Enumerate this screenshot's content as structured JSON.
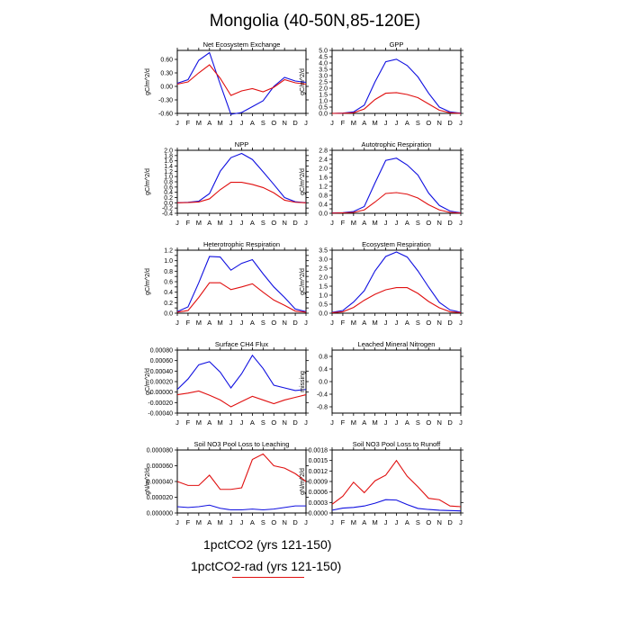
{
  "title": "Mongolia (40-50N,85-120E)",
  "months": [
    "J",
    "F",
    "M",
    "A",
    "M",
    "J",
    "J",
    "A",
    "S",
    "O",
    "N",
    "D",
    "J"
  ],
  "colors": {
    "blue": "#1010e0",
    "red": "#e01010"
  },
  "legend": {
    "entries": [
      {
        "label": "1pctCO2 (yrs 121-150)",
        "color": "#1010e0"
      },
      {
        "label": "1pctCO2-rad (yrs 121-150)",
        "color": "#e01010"
      }
    ]
  },
  "chart_data": [
    {
      "type": "line",
      "title": "Net Ecosystem Exchange",
      "ylabel": "gC/m^2/d",
      "ylim": [
        -0.6,
        0.8
      ],
      "yticks": [
        -0.6,
        -0.3,
        0.0,
        0.3,
        0.6
      ],
      "ytick_labels": [
        "-0.60",
        "-0.30",
        "0.00",
        "0.30",
        "0.60"
      ],
      "series": [
        {
          "color": "blue",
          "values": [
            0.07,
            0.15,
            0.58,
            0.75,
            0.05,
            -0.62,
            -0.58,
            -0.45,
            -0.32,
            0.0,
            0.2,
            0.12,
            0.09
          ]
        },
        {
          "color": "red",
          "values": [
            0.05,
            0.1,
            0.3,
            0.48,
            0.18,
            -0.2,
            -0.1,
            -0.05,
            -0.12,
            -0.02,
            0.15,
            0.08,
            0.05
          ]
        }
      ]
    },
    {
      "type": "line",
      "title": "GPP",
      "ylabel": "gC/m^2/d",
      "ylim": [
        0,
        5
      ],
      "yticks": [
        0,
        0.5,
        1,
        1.5,
        2,
        2.5,
        3,
        3.5,
        4,
        4.5,
        5
      ],
      "ytick_labels": [
        "0.0",
        "0.5",
        "1.0",
        "1.5",
        "2.0",
        "2.5",
        "3.0",
        "3.5",
        "4.0",
        "4.5",
        "5.0"
      ],
      "series": [
        {
          "color": "blue",
          "values": [
            0.0,
            0.02,
            0.12,
            0.65,
            2.5,
            4.1,
            4.3,
            3.8,
            2.9,
            1.6,
            0.5,
            0.12,
            0.02
          ]
        },
        {
          "color": "red",
          "values": [
            0.0,
            0.01,
            0.05,
            0.35,
            1.1,
            1.6,
            1.65,
            1.5,
            1.25,
            0.75,
            0.25,
            0.05,
            0.0
          ]
        }
      ]
    },
    {
      "type": "line",
      "title": "NPP",
      "ylabel": "gC/m^2/d",
      "ylim": [
        -0.4,
        2.0
      ],
      "yticks": [
        -0.4,
        -0.2,
        0,
        0.2,
        0.4,
        0.6,
        0.8,
        1.0,
        1.2,
        1.4,
        1.6,
        1.8,
        2.0
      ],
      "ytick_labels": [
        "-0.4",
        "-0.2",
        "0.0",
        "0.2",
        "0.4",
        "0.6",
        "0.8",
        "1.0",
        "1.2",
        "1.4",
        "1.6",
        "1.8",
        "2.0"
      ],
      "series": [
        {
          "color": "blue",
          "values": [
            0.0,
            0.02,
            0.06,
            0.35,
            1.2,
            1.72,
            1.88,
            1.65,
            1.18,
            0.7,
            0.2,
            0.04,
            0.0
          ]
        },
        {
          "color": "red",
          "values": [
            0.0,
            0.01,
            0.03,
            0.15,
            0.5,
            0.78,
            0.78,
            0.7,
            0.58,
            0.38,
            0.1,
            0.02,
            0.0
          ]
        }
      ]
    },
    {
      "type": "line",
      "title": "Autotrophic Respiration",
      "ylabel": "gC/m^2/d",
      "ylim": [
        0,
        2.8
      ],
      "yticks": [
        0,
        0.2,
        0.4,
        0.6,
        0.8,
        1.0,
        1.2,
        1.4,
        1.6,
        1.8,
        2.0,
        2.2,
        2.4,
        2.6,
        2.8
      ],
      "ytick_labels": [
        "0.0",
        "",
        "0.4",
        "",
        "0.8",
        "",
        "1.2",
        "",
        "1.6",
        "",
        "2.0",
        "",
        "2.4",
        "",
        "2.8"
      ],
      "series": [
        {
          "color": "blue",
          "values": [
            0.02,
            0.03,
            0.08,
            0.3,
            1.35,
            2.35,
            2.45,
            2.15,
            1.7,
            0.9,
            0.35,
            0.1,
            0.02
          ]
        },
        {
          "color": "red",
          "values": [
            0.01,
            0.02,
            0.04,
            0.15,
            0.5,
            0.88,
            0.92,
            0.85,
            0.68,
            0.38,
            0.15,
            0.04,
            0.01
          ]
        }
      ]
    },
    {
      "type": "line",
      "title": "Heterotrophic Respiration",
      "ylabel": "gC/m^2/d",
      "ylim": [
        0,
        1.2
      ],
      "yticks": [
        0,
        0.1,
        0.2,
        0.3,
        0.4,
        0.5,
        0.6,
        0.7,
        0.8,
        0.9,
        1.0,
        1.1,
        1.2
      ],
      "ytick_labels": [
        "0.0",
        "",
        "0.2",
        "",
        "0.4",
        "",
        "0.6",
        "",
        "0.8",
        "",
        "1.0",
        "",
        "1.2"
      ],
      "series": [
        {
          "color": "blue",
          "values": [
            0.03,
            0.12,
            0.58,
            1.08,
            1.07,
            0.82,
            0.95,
            1.02,
            0.75,
            0.5,
            0.3,
            0.08,
            0.03
          ]
        },
        {
          "color": "red",
          "values": [
            0.02,
            0.05,
            0.3,
            0.58,
            0.58,
            0.45,
            0.5,
            0.56,
            0.4,
            0.25,
            0.15,
            0.04,
            0.02
          ]
        }
      ]
    },
    {
      "type": "line",
      "title": "Ecosystem Respiration",
      "ylabel": "gC/m^2/d",
      "ylim": [
        0,
        3.5
      ],
      "yticks": [
        0,
        0.5,
        1,
        1.5,
        2,
        2.5,
        3,
        3.5
      ],
      "ytick_labels": [
        "0.0",
        "0.5",
        "1.0",
        "1.5",
        "2.0",
        "2.5",
        "3.0",
        "3.5"
      ],
      "series": [
        {
          "color": "blue",
          "values": [
            0.05,
            0.15,
            0.62,
            1.25,
            2.35,
            3.15,
            3.4,
            3.12,
            2.35,
            1.45,
            0.6,
            0.18,
            0.05
          ]
        },
        {
          "color": "red",
          "values": [
            0.03,
            0.08,
            0.32,
            0.72,
            1.05,
            1.3,
            1.42,
            1.42,
            1.1,
            0.65,
            0.3,
            0.08,
            0.03
          ]
        }
      ]
    },
    {
      "type": "line",
      "title": "Surface CH4 Flux",
      "ylabel": "gC/m^2/d",
      "ylim": [
        -0.0004,
        0.0008
      ],
      "yticks": [
        -0.0004,
        -0.0002,
        0,
        0.0002,
        0.0004,
        0.0006,
        0.0008
      ],
      "ytick_labels": [
        "-0.00040",
        "-0.00020",
        "0.00000",
        "0.00020",
        "0.00040",
        "0.00060",
        "0.00080"
      ],
      "series": [
        {
          "color": "blue",
          "values": [
            5e-05,
            0.00025,
            0.00052,
            0.00058,
            0.00038,
            8e-05,
            0.00035,
            0.0007,
            0.00045,
            0.00013,
            8e-05,
            3e-05,
            5e-05
          ]
        },
        {
          "color": "red",
          "values": [
            -5e-05,
            -2e-05,
            2e-05,
            -6e-05,
            -0.00015,
            -0.00028,
            -0.00018,
            -8e-05,
            -0.00015,
            -0.00022,
            -0.00015,
            -0.0001,
            -5e-05
          ]
        }
      ]
    },
    {
      "type": "line",
      "title": "Leached Mineral Nitrogen",
      "ylabel": "missing",
      "ylim": [
        -1.0,
        1.0
      ],
      "yticks": [
        -0.8,
        -0.4,
        0,
        0.4,
        0.8
      ],
      "ytick_labels": [
        "-0.8",
        "-0.4",
        "0.0",
        "0.4",
        "0.8"
      ],
      "series": []
    },
    {
      "type": "line",
      "title": "Soil NO3 Pool Loss to Leaching",
      "ylabel": "gN/m^2/d",
      "ylim": [
        0,
        8e-05
      ],
      "yticks": [
        0,
        2e-05,
        4e-05,
        6e-05,
        8e-05
      ],
      "ytick_labels": [
        "0.000000",
        "0.000020",
        "0.000040",
        "0.000060",
        "0.000080"
      ],
      "series": [
        {
          "color": "blue",
          "values": [
            8e-06,
            7e-06,
            8e-06,
            1e-05,
            6e-06,
            4e-06,
            4e-06,
            5e-06,
            4e-06,
            5e-06,
            7e-06,
            9e-06,
            9e-06
          ]
        },
        {
          "color": "red",
          "values": [
            4e-05,
            3.5e-05,
            3.5e-05,
            4.8e-05,
            3e-05,
            3e-05,
            3.2e-05,
            6.8e-05,
            7.5e-05,
            6e-05,
            5.7e-05,
            5e-05,
            4e-05
          ]
        }
      ]
    },
    {
      "type": "line",
      "title": "Soil NO3 Pool Loss to Runoff",
      "ylabel": "gN/m^2/d",
      "ylim": [
        0,
        0.0018
      ],
      "yticks": [
        0,
        0.0003,
        0.0006,
        0.0009,
        0.0012,
        0.0015,
        0.0018
      ],
      "ytick_labels": [
        "0.0000",
        "0.0003",
        "0.0006",
        "0.0009",
        "0.0012",
        "0.0015",
        "0.0018"
      ],
      "series": [
        {
          "color": "blue",
          "values": [
            8e-05,
            0.00014,
            0.00016,
            0.0002,
            0.00028,
            0.00038,
            0.00037,
            0.00024,
            0.00013,
            0.0001,
            8e-05,
            7e-05,
            6e-05
          ]
        },
        {
          "color": "red",
          "values": [
            0.00025,
            0.00048,
            0.00088,
            0.00058,
            0.00092,
            0.00108,
            0.0015,
            0.00105,
            0.00075,
            0.00042,
            0.00038,
            0.0002,
            0.00018
          ]
        }
      ]
    }
  ]
}
